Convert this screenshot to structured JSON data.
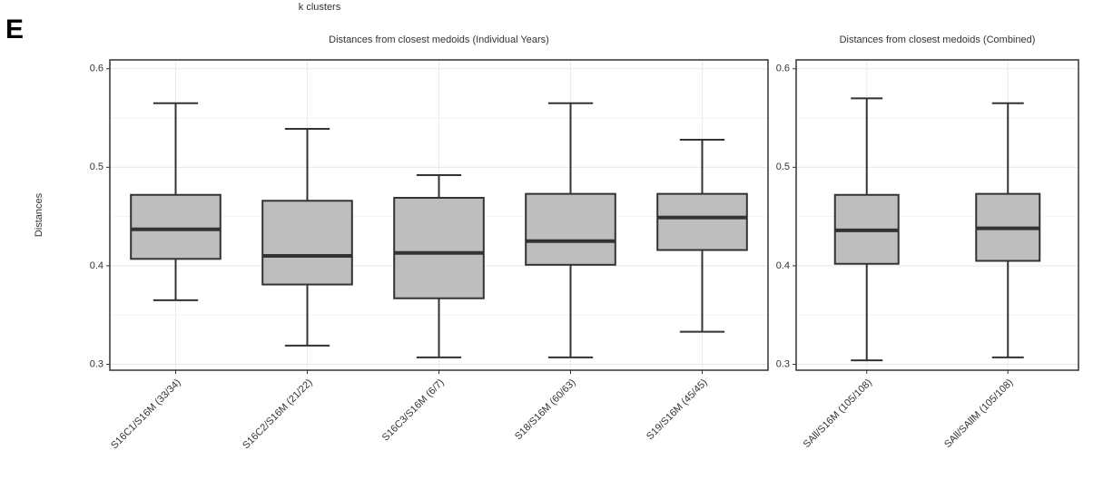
{
  "cropped_text": "k clusters",
  "panel_label": "E",
  "chart_data": [
    {
      "type": "box",
      "title": "Distances from closest medoids (Individual Years)",
      "y_label": "Distances",
      "categories": [
        "S16C1/S16M (33/34)",
        "S16C2/S16M (21/22)",
        "S16C3/S16M (6/7)",
        "S18/S16M (60/63)",
        "S19/S16M (45/45)"
      ],
      "min": [
        0.365,
        0.319,
        0.307,
        0.307,
        0.333
      ],
      "q1": [
        0.407,
        0.381,
        0.367,
        0.401,
        0.416
      ],
      "median": [
        0.437,
        0.41,
        0.413,
        0.425,
        0.449
      ],
      "q3": [
        0.472,
        0.466,
        0.469,
        0.473,
        0.473
      ],
      "max": [
        0.565,
        0.539,
        0.492,
        0.565,
        0.528
      ],
      "color": "#bebebe",
      "ylim": [
        0.294,
        0.609
      ],
      "yticks": [
        0.3,
        0.4,
        0.5,
        0.6
      ],
      "minor_grid": [
        0.35,
        0.45,
        0.55
      ],
      "grid": true
    },
    {
      "type": "box",
      "title": "Distances from closest medoids (Combined)",
      "categories": [
        "SAll/S16M (105/108)",
        "SAll/SAllM (105/108)"
      ],
      "min": [
        0.304,
        0.307
      ],
      "q1": [
        0.402,
        0.405
      ],
      "median": [
        0.436,
        0.438
      ],
      "q3": [
        0.472,
        0.473
      ],
      "max": [
        0.57,
        0.565
      ],
      "color": "#bebebe",
      "ylim": [
        0.294,
        0.609
      ],
      "yticks": [
        0.3,
        0.4,
        0.5,
        0.6
      ],
      "minor_grid": [
        0.35,
        0.45,
        0.55
      ],
      "grid": true
    }
  ]
}
